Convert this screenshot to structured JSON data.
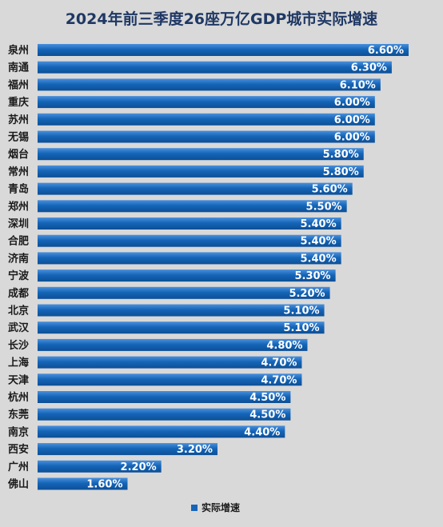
{
  "chart_data": {
    "type": "bar",
    "orientation": "horizontal",
    "title": "2024年前三季度26座万亿GDP城市实际增速",
    "categories": [
      "泉州",
      "南通",
      "福州",
      "重庆",
      "苏州",
      "无锡",
      "烟台",
      "常州",
      "青岛",
      "郑州",
      "深圳",
      "合肥",
      "济南",
      "宁波",
      "成都",
      "北京",
      "武汉",
      "长沙",
      "上海",
      "天津",
      "杭州",
      "东莞",
      "南京",
      "西安",
      "广州",
      "佛山"
    ],
    "series": [
      {
        "name": "实际增速",
        "values": [
          6.6,
          6.3,
          6.1,
          6.0,
          6.0,
          6.0,
          5.8,
          5.8,
          5.6,
          5.5,
          5.4,
          5.4,
          5.4,
          5.3,
          5.2,
          5.1,
          5.1,
          4.8,
          4.7,
          4.7,
          4.5,
          4.5,
          4.4,
          3.2,
          2.2,
          1.6
        ],
        "labels": [
          "6.60%",
          "6.30%",
          "6.10%",
          "6.00%",
          "6.00%",
          "6.00%",
          "5.80%",
          "5.80%",
          "5.60%",
          "5.50%",
          "5.40%",
          "5.40%",
          "5.40%",
          "5.30%",
          "5.20%",
          "5.10%",
          "5.10%",
          "4.80%",
          "4.70%",
          "4.70%",
          "4.50%",
          "4.50%",
          "4.40%",
          "3.20%",
          "2.20%",
          "1.60%"
        ]
      }
    ],
    "xlim": [
      0,
      6.6
    ],
    "grid": false,
    "legend": "bottom",
    "colors": {
      "bar": "#1565b8",
      "bar_light": "#4a90dc",
      "value_label": "#ffffff"
    }
  }
}
